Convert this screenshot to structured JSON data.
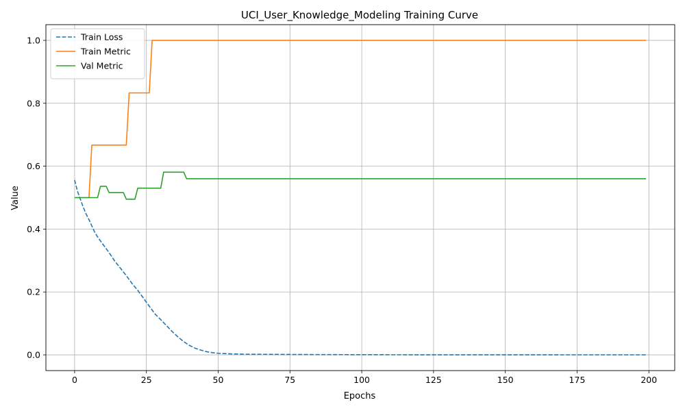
{
  "chart_data": {
    "type": "line",
    "title": "UCI_User_Knowledge_Modeling Training Curve",
    "xlabel": "Epochs",
    "ylabel": "Value",
    "xlim": [
      -10,
      209
    ],
    "ylim": [
      -0.05,
      1.05
    ],
    "xticks": [
      0,
      25,
      50,
      75,
      100,
      125,
      150,
      175,
      200
    ],
    "yticks": [
      0.0,
      0.2,
      0.4,
      0.6,
      0.8,
      1.0
    ],
    "xtick_labels": [
      "0",
      "25",
      "50",
      "75",
      "100",
      "125",
      "150",
      "175",
      "200"
    ],
    "ytick_labels": [
      "0.0",
      "0.2",
      "0.4",
      "0.6",
      "0.8",
      "1.0"
    ],
    "grid": true,
    "legend_position": "top-left",
    "series": [
      {
        "name": "Train Loss",
        "color": "#1f77b4",
        "dash": "dashed",
        "x": [
          0,
          1,
          2,
          3,
          4,
          5,
          6,
          7,
          8,
          10,
          12,
          14,
          16,
          18,
          20,
          22,
          24,
          26,
          28,
          30,
          32,
          34,
          36,
          38,
          40,
          42,
          44,
          46,
          48,
          50,
          55,
          60,
          70,
          80,
          100,
          120,
          150,
          175,
          199
        ],
        "y": [
          0.556,
          0.52,
          0.495,
          0.47,
          0.448,
          0.43,
          0.41,
          0.39,
          0.375,
          0.35,
          0.325,
          0.298,
          0.275,
          0.252,
          0.227,
          0.205,
          0.18,
          0.155,
          0.13,
          0.112,
          0.093,
          0.074,
          0.057,
          0.042,
          0.03,
          0.021,
          0.015,
          0.01,
          0.007,
          0.005,
          0.003,
          0.002,
          0.0015,
          0.001,
          0.0005,
          0.0003,
          0.0002,
          0.0001,
          0.0001
        ]
      },
      {
        "name": "Train Metric",
        "color": "#ff7f0e",
        "dash": "solid",
        "x": [
          0,
          5,
          6,
          18,
          19,
          26,
          27,
          199
        ],
        "y": [
          0.5,
          0.5,
          0.667,
          0.667,
          0.833,
          0.833,
          1.0,
          1.0
        ]
      },
      {
        "name": "Val Metric",
        "color": "#2ca02c",
        "dash": "solid",
        "x": [
          0,
          8,
          9,
          11,
          12,
          17,
          18,
          21,
          22,
          30,
          31,
          38,
          39,
          199
        ],
        "y": [
          0.5,
          0.5,
          0.536,
          0.536,
          0.516,
          0.516,
          0.495,
          0.495,
          0.53,
          0.53,
          0.581,
          0.581,
          0.56,
          0.56
        ]
      }
    ]
  }
}
